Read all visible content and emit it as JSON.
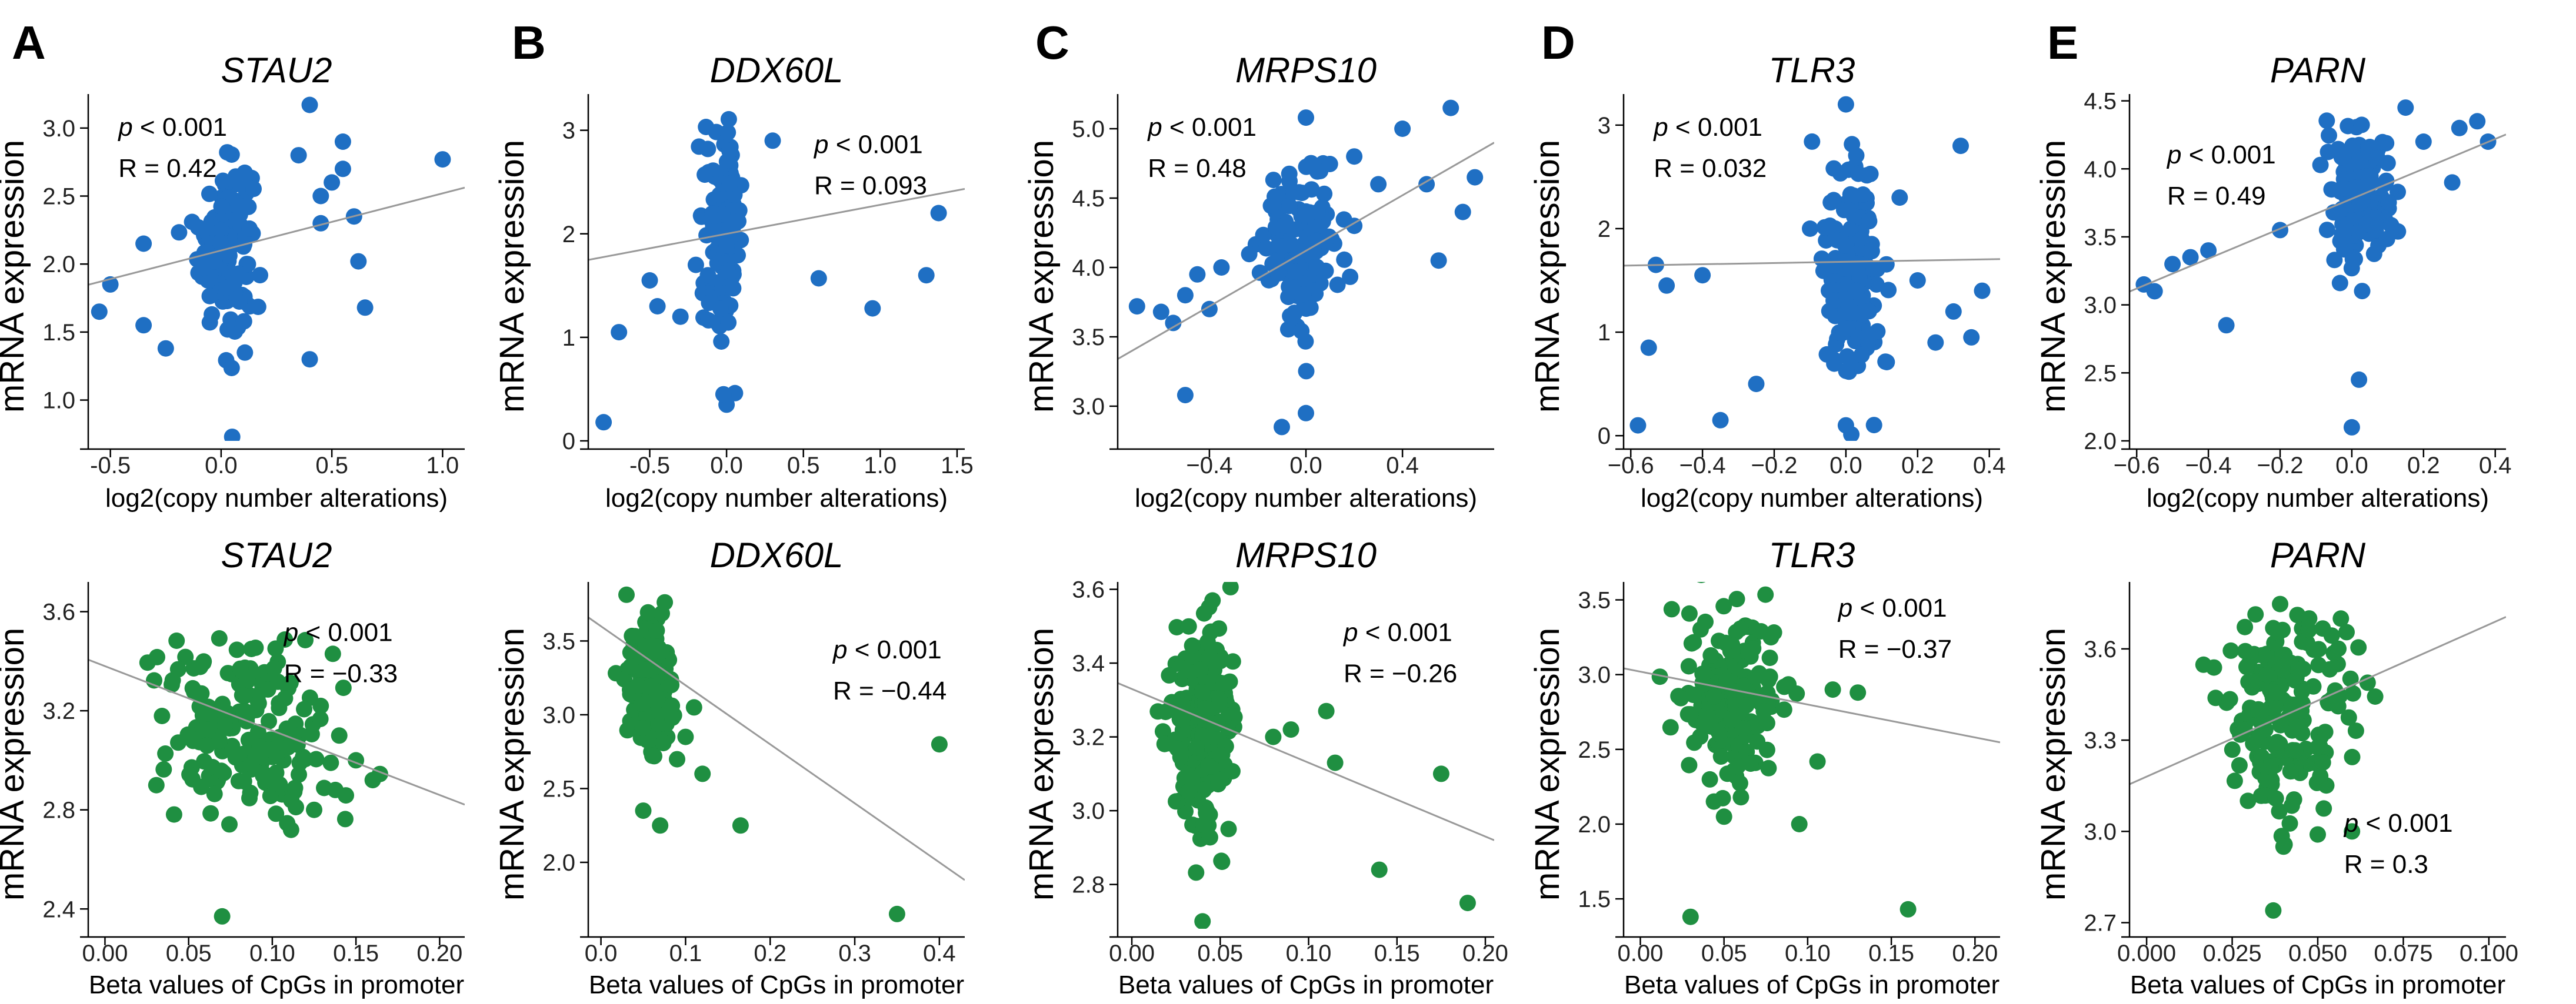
{
  "figure_labels": [
    "A",
    "B",
    "C",
    "D",
    "E"
  ],
  "colors": {
    "cna": "#1f6fc3",
    "methylation": "#1f8f41",
    "fit": "#999999"
  },
  "chart_data": [
    {
      "type": "scatter",
      "gene": "STAU2",
      "title": "STAU2",
      "panel": "A",
      "xlabel": "log2(copy number alterations)",
      "ylabel": "mRNA expression",
      "xlim": [
        -0.6,
        1.1
      ],
      "ylim": [
        0.7,
        3.25
      ],
      "xticks": [
        -0.5,
        0.0,
        0.5,
        1.0
      ],
      "xtick_labels": [
        "-0.5",
        "0.0",
        "0.5",
        "1.0"
      ],
      "yticks": [
        1.0,
        1.5,
        2.0,
        2.5,
        3.0
      ],
      "ytick_labels": [
        "1.0",
        "1.5",
        "2.0",
        "2.5",
        "3.0"
      ],
      "p_label": "p",
      "p_text": " < 0.001",
      "r_text": "R = 0.42",
      "fit": {
        "slope": 0.42,
        "intercept": 2.1
      },
      "points": {
        "n": 150,
        "center_x": 0.02,
        "spread_x": 0.06,
        "center_y": 2.15,
        "spread_y": 0.3,
        "outliers": [
          [
            -0.55,
            1.65
          ],
          [
            -0.5,
            1.85
          ],
          [
            -0.35,
            1.55
          ],
          [
            -0.35,
            2.15
          ],
          [
            -0.25,
            1.38
          ],
          [
            0.35,
            2.8
          ],
          [
            0.4,
            3.17
          ],
          [
            0.45,
            2.5
          ],
          [
            0.5,
            2.6
          ],
          [
            0.55,
            2.9
          ],
          [
            0.6,
            2.35
          ],
          [
            0.62,
            2.02
          ],
          [
            0.65,
            1.68
          ],
          [
            1.0,
            2.77
          ],
          [
            0.4,
            1.3
          ],
          [
            0.05,
            0.73
          ],
          [
            0.45,
            2.3
          ],
          [
            0.55,
            2.7
          ]
        ]
      }
    },
    {
      "type": "scatter",
      "gene": "DDX60L",
      "title": "DDX60L",
      "panel": "B",
      "xlabel": "log2(copy number alterations)",
      "ylabel": "mRNA expression",
      "xlim": [
        -0.9,
        1.55
      ],
      "ylim": [
        0,
        3.35
      ],
      "xticks": [
        -0.5,
        0.0,
        0.5,
        1.0,
        1.5
      ],
      "xtick_labels": [
        "-0.5",
        "0.0",
        "0.5",
        "1.0",
        "1.5"
      ],
      "yticks": [
        0,
        1,
        2,
        3
      ],
      "ytick_labels": [
        "0",
        "1",
        "2",
        "3"
      ],
      "p_label": "p",
      "p_text": " < 0.001",
      "r_text": "R = 0.093",
      "fit": {
        "slope": 0.28,
        "intercept": 2.0
      },
      "points": {
        "n": 140,
        "center_x": -0.02,
        "spread_x": 0.06,
        "center_y": 2.05,
        "spread_y": 0.45,
        "outliers": [
          [
            -0.8,
            0.18
          ],
          [
            -0.7,
            1.05
          ],
          [
            -0.5,
            1.55
          ],
          [
            -0.45,
            1.3
          ],
          [
            -0.3,
            1.2
          ],
          [
            -0.2,
            1.7
          ],
          [
            0.3,
            2.9
          ],
          [
            0.6,
            1.57
          ],
          [
            0.95,
            1.28
          ],
          [
            1.3,
            1.6
          ],
          [
            1.38,
            2.2
          ],
          [
            0.0,
            0.35
          ],
          [
            -0.02,
            0.45
          ]
        ]
      }
    },
    {
      "type": "scatter",
      "gene": "MRPS10",
      "title": "MRPS10",
      "panel": "C",
      "xlabel": "log2(copy number alterations)",
      "ylabel": "mRNA expression",
      "xlim": [
        -0.78,
        0.78
      ],
      "ylim": [
        2.75,
        5.25
      ],
      "xticks": [
        -0.4,
        0.0,
        0.4
      ],
      "xtick_labels": [
        "−0.4",
        "0.0",
        "0.4"
      ],
      "yticks": [
        3.0,
        3.5,
        4.0,
        4.5,
        5.0
      ],
      "ytick_labels": [
        "3.0",
        "3.5",
        "4.0",
        "4.5",
        "5.0"
      ],
      "p_label": "p",
      "p_text": " < 0.001",
      "r_text": "R = 0.48",
      "fit": {
        "slope": 1.0,
        "intercept": 4.12
      },
      "points": {
        "n": 150,
        "center_x": -0.02,
        "spread_x": 0.08,
        "center_y": 4.15,
        "spread_y": 0.28,
        "outliers": [
          [
            -0.7,
            3.72
          ],
          [
            -0.6,
            3.68
          ],
          [
            -0.55,
            3.6
          ],
          [
            -0.5,
            3.8
          ],
          [
            -0.45,
            3.95
          ],
          [
            -0.4,
            3.7
          ],
          [
            -0.35,
            4.0
          ],
          [
            -0.5,
            3.08
          ],
          [
            0.2,
            4.3
          ],
          [
            0.3,
            4.6
          ],
          [
            0.4,
            5.0
          ],
          [
            0.5,
            4.6
          ],
          [
            0.6,
            5.15
          ],
          [
            0.7,
            4.65
          ],
          [
            0.65,
            4.4
          ],
          [
            0.55,
            4.05
          ],
          [
            0.2,
            4.8
          ],
          [
            0.0,
            5.08
          ],
          [
            -0.1,
            2.85
          ],
          [
            0.0,
            2.95
          ]
        ]
      }
    },
    {
      "type": "scatter",
      "gene": "TLR3",
      "title": "TLR3",
      "panel": "D",
      "xlabel": "log2(copy number alterations)",
      "ylabel": "mRNA expression",
      "xlim": [
        -0.62,
        0.43
      ],
      "ylim": [
        -0.05,
        3.3
      ],
      "xticks": [
        -0.6,
        -0.4,
        -0.2,
        0.0,
        0.2,
        0.4
      ],
      "xtick_labels": [
        "−0.6",
        "−0.4",
        "−0.2",
        "0.0",
        "0.2",
        "0.4"
      ],
      "yticks": [
        0,
        1,
        2,
        3
      ],
      "ytick_labels": [
        "0",
        "1",
        "2",
        "3"
      ],
      "p_label": "p",
      "p_text": " < 0.001",
      "r_text": "R = 0.032",
      "fit": {
        "slope": 0.06,
        "intercept": 1.68
      },
      "points": {
        "n": 150,
        "center_x": 0.02,
        "spread_x": 0.04,
        "center_y": 1.55,
        "spread_y": 0.6,
        "outliers": [
          [
            -0.58,
            0.1
          ],
          [
            -0.55,
            0.85
          ],
          [
            -0.53,
            1.65
          ],
          [
            -0.5,
            1.45
          ],
          [
            -0.4,
            1.55
          ],
          [
            -0.35,
            0.15
          ],
          [
            -0.25,
            0.5
          ],
          [
            -0.1,
            2.0
          ],
          [
            0.15,
            2.3
          ],
          [
            0.2,
            1.5
          ],
          [
            0.25,
            0.9
          ],
          [
            0.3,
            1.2
          ],
          [
            0.32,
            2.8
          ],
          [
            0.35,
            0.95
          ],
          [
            0.38,
            1.4
          ],
          [
            0.0,
            0.1
          ],
          [
            0.0,
            3.2
          ]
        ]
      }
    },
    {
      "type": "scatter",
      "gene": "PARN",
      "title": "PARN",
      "panel": "E",
      "xlabel": "log2(copy number alterations)",
      "ylabel": "mRNA expression",
      "xlim": [
        -0.62,
        0.43
      ],
      "ylim": [
        2.0,
        4.55
      ],
      "xticks": [
        -0.6,
        -0.4,
        -0.2,
        0.0,
        0.2,
        0.4
      ],
      "xtick_labels": [
        "−0.6",
        "−0.4",
        "−0.2",
        "0.0",
        "0.2",
        "0.4"
      ],
      "yticks": [
        2.0,
        2.5,
        3.0,
        3.5,
        4.0,
        4.5
      ],
      "ytick_labels": [
        "2.0",
        "2.5",
        "3.0",
        "3.5",
        "4.0",
        "4.5"
      ],
      "p_label": "p",
      "p_text": " < 0.001",
      "r_text": "R = 0.49",
      "fit": {
        "slope": 1.1,
        "intercept": 3.78
      },
      "points": {
        "n": 150,
        "center_x": 0.02,
        "spread_x": 0.04,
        "center_y": 3.8,
        "spread_y": 0.25,
        "outliers": [
          [
            -0.58,
            3.15
          ],
          [
            -0.55,
            3.1
          ],
          [
            -0.5,
            3.3
          ],
          [
            -0.45,
            3.35
          ],
          [
            -0.4,
            3.4
          ],
          [
            -0.35,
            2.85
          ],
          [
            -0.2,
            3.55
          ],
          [
            0.2,
            4.2
          ],
          [
            0.3,
            4.3
          ],
          [
            0.35,
            4.35
          ],
          [
            0.38,
            4.2
          ],
          [
            0.28,
            3.9
          ],
          [
            0.0,
            2.1
          ],
          [
            0.02,
            2.45
          ],
          [
            0.15,
            4.45
          ]
        ]
      }
    },
    {
      "type": "scatter",
      "gene": "STAU2",
      "title": "STAU2",
      "xlabel": "Beta values of CpGs in promoter",
      "ylabel": "mRNA expression",
      "xlim": [
        -0.01,
        0.215
      ],
      "ylim": [
        2.32,
        3.72
      ],
      "xticks": [
        0.0,
        0.05,
        0.1,
        0.15,
        0.2
      ],
      "xtick_labels": [
        "0.00",
        "0.05",
        "0.10",
        "0.15",
        "0.20"
      ],
      "yticks": [
        2.4,
        2.8,
        3.2,
        3.6
      ],
      "ytick_labels": [
        "2.4",
        "2.8",
        "3.2",
        "3.6"
      ],
      "p_label": "p",
      "p_text": " < 0.001",
      "r_text": "R = −0.33",
      "fit": {
        "slope": -2.6,
        "intercept": 3.38
      },
      "points": {
        "n": 180,
        "center_x": 0.085,
        "spread_x": 0.025,
        "center_y": 3.12,
        "spread_y": 0.2,
        "outliers": [
          [
            0.07,
            2.37
          ],
          [
            0.16,
            2.92
          ],
          [
            0.15,
            3.0
          ],
          [
            0.14,
            3.1
          ],
          [
            0.125,
            2.8
          ]
        ]
      }
    },
    {
      "type": "scatter",
      "gene": "DDX60L",
      "title": "DDX60L",
      "xlabel": "Beta values of CpGs in promoter",
      "ylabel": "mRNA expression",
      "xlim": [
        -0.015,
        0.43
      ],
      "ylim": [
        1.55,
        3.9
      ],
      "xticks": [
        0.0,
        0.1,
        0.2,
        0.3,
        0.4
      ],
      "xtick_labels": [
        "0.0",
        "0.1",
        "0.2",
        "0.3",
        "0.4"
      ],
      "yticks": [
        2.0,
        2.5,
        3.0,
        3.5
      ],
      "ytick_labels": [
        "2.0",
        "2.5",
        "3.0",
        "3.5"
      ],
      "p_label": "p",
      "p_text": " < 0.001",
      "r_text": "R = −0.44",
      "fit": {
        "slope": -4.0,
        "intercept": 3.6
      },
      "points": {
        "n": 160,
        "center_x": 0.06,
        "spread_x": 0.015,
        "center_y": 3.2,
        "spread_y": 0.25,
        "outliers": [
          [
            0.05,
            2.35
          ],
          [
            0.07,
            2.25
          ],
          [
            0.165,
            2.25
          ],
          [
            0.1,
            2.85
          ],
          [
            0.12,
            2.6
          ],
          [
            0.35,
            1.65
          ],
          [
            0.4,
            2.8
          ],
          [
            0.11,
            3.05
          ]
        ]
      }
    },
    {
      "type": "scatter",
      "gene": "MRPS10",
      "title": "MRPS10",
      "xlabel": "Beta values of CpGs in promoter",
      "ylabel": "mRNA expression",
      "xlim": [
        -0.008,
        0.205
      ],
      "ylim": [
        2.68,
        3.62
      ],
      "xticks": [
        0.0,
        0.05,
        0.1,
        0.15,
        0.2
      ],
      "xtick_labels": [
        "0.00",
        "0.05",
        "0.10",
        "0.15",
        "0.20"
      ],
      "yticks": [
        2.8,
        3.0,
        3.2,
        3.4,
        3.6
      ],
      "ytick_labels": [
        "2.8",
        "3.0",
        "3.2",
        "3.4",
        "3.6"
      ],
      "p_label": "p",
      "p_text": " < 0.001",
      "r_text": "R = −0.26",
      "fit": {
        "slope": -2.0,
        "intercept": 3.33
      },
      "points": {
        "n": 170,
        "center_x": 0.04,
        "spread_x": 0.01,
        "center_y": 3.22,
        "spread_y": 0.16,
        "outliers": [
          [
            0.04,
            2.7
          ],
          [
            0.08,
            3.2
          ],
          [
            0.09,
            3.22
          ],
          [
            0.11,
            3.27
          ],
          [
            0.115,
            3.13
          ],
          [
            0.14,
            2.84
          ],
          [
            0.175,
            3.1
          ],
          [
            0.19,
            2.75
          ]
        ]
      }
    },
    {
      "type": "scatter",
      "gene": "TLR3",
      "title": "TLR3",
      "xlabel": "Beta values of CpGs in promoter",
      "ylabel": "mRNA expression",
      "xlim": [
        -0.01,
        0.215
      ],
      "ylim": [
        1.3,
        3.62
      ],
      "xticks": [
        0.0,
        0.05,
        0.1,
        0.15,
        0.2
      ],
      "xtick_labels": [
        "0.00",
        "0.05",
        "0.10",
        "0.15",
        "0.20"
      ],
      "yticks": [
        1.5,
        2.0,
        2.5,
        3.0,
        3.5
      ],
      "ytick_labels": [
        "1.5",
        "2.0",
        "2.5",
        "3.0",
        "3.5"
      ],
      "p_label": "p",
      "p_text": " < 0.001",
      "r_text": "R = −0.37",
      "fit": {
        "slope": -2.2,
        "intercept": 3.02
      },
      "points": {
        "n": 170,
        "center_x": 0.055,
        "spread_x": 0.015,
        "center_y": 2.85,
        "spread_y": 0.28,
        "outliers": [
          [
            0.03,
            1.38
          ],
          [
            0.16,
            1.43
          ],
          [
            0.095,
            2.0
          ],
          [
            0.13,
            2.88
          ],
          [
            0.05,
            2.05
          ],
          [
            0.115,
            2.9
          ]
        ]
      }
    },
    {
      "type": "scatter",
      "gene": "PARN",
      "title": "PARN",
      "xlabel": "Beta values of CpGs in promoter",
      "ylabel": "mRNA expression",
      "xlim": [
        -0.005,
        0.105
      ],
      "ylim": [
        2.68,
        3.82
      ],
      "xticks": [
        0.0,
        0.025,
        0.05,
        0.075,
        0.1
      ],
      "xtick_labels": [
        "0.000",
        "0.025",
        "0.050",
        "0.075",
        "0.100"
      ],
      "yticks": [
        2.7,
        3.0,
        3.3,
        3.6
      ],
      "ytick_labels": [
        "2.7",
        "3.0",
        "3.3",
        "3.6"
      ],
      "p_label": "p",
      "p_text": " < 0.001",
      "r_text": "R = 0.3",
      "fit": {
        "slope": 5.0,
        "intercept": 3.18
      },
      "points": {
        "n": 180,
        "center_x": 0.042,
        "spread_x": 0.009,
        "center_y": 3.4,
        "spread_y": 0.17,
        "outliers": [
          [
            0.037,
            2.74
          ],
          [
            0.05,
            2.99
          ],
          [
            0.06,
            3.0
          ],
          [
            0.04,
            2.95
          ]
        ]
      }
    }
  ]
}
